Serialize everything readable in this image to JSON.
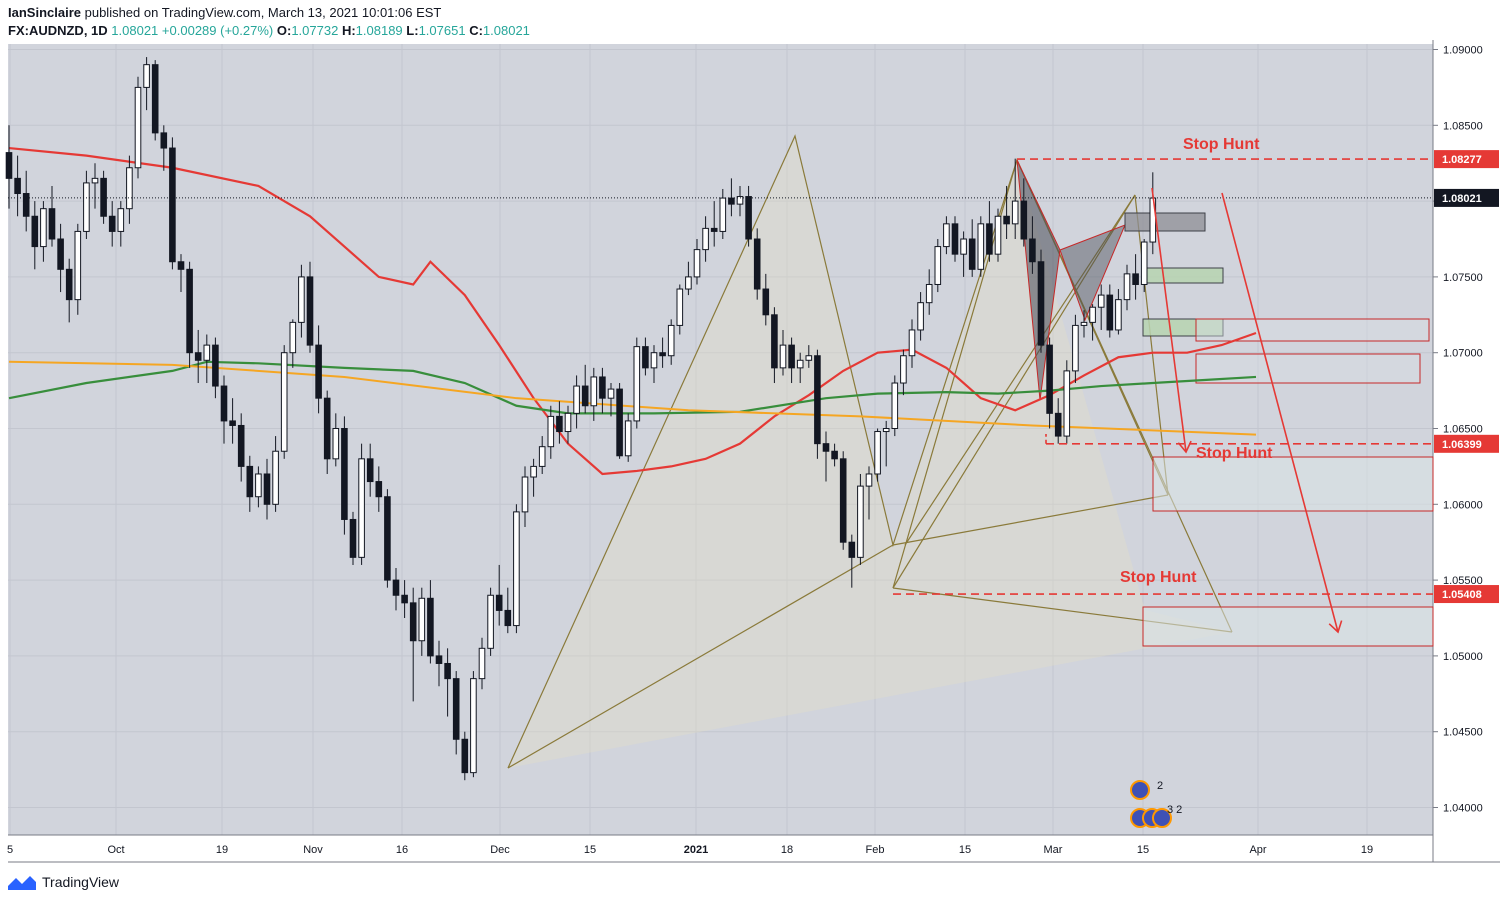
{
  "header": {
    "author": "IanSinclaire",
    "published_text": "published on TradingView.com, March 13, 2021 10:01:06 EST",
    "symbol": "FX:AUDNZD, 1D",
    "last": "1.08021",
    "change": "+0.00289 (+0.27%)",
    "o_label": "O:",
    "o_value": "1.07732",
    "h_label": "H:",
    "h_value": "1.08189",
    "l_label": "L:",
    "l_value": "1.07651",
    "c_label": "C:",
    "c_value": "1.08021"
  },
  "footer": {
    "brand": "TradingView"
  },
  "chart_data": {
    "type": "candlestick",
    "symbol": "FX:AUDNZD",
    "timeframe": "1D",
    "ylim": [
      1.0365,
      1.0915
    ],
    "y_ticks": [
      "1.09000",
      "1.08500",
      "1.08000",
      "1.07500",
      "1.07000",
      "1.06500",
      "1.06000",
      "1.05500",
      "1.05000",
      "1.04500",
      "1.04000"
    ],
    "x_ticks": [
      "5",
      "Oct",
      "19",
      "Nov",
      "16",
      "Dec",
      "15",
      "2021",
      "18",
      "Feb",
      "15",
      "Mar",
      "15",
      "Apr",
      "19"
    ],
    "price_tags": [
      {
        "label": "1.08277",
        "value": 1.08277,
        "color": "#e53935"
      },
      {
        "label": "1.08021",
        "value": 1.08021,
        "color": "#131722"
      },
      {
        "label": "1.06399",
        "value": 1.06399,
        "color": "#e53935"
      },
      {
        "label": "1.05408",
        "value": 1.05408,
        "color": "#e53935"
      }
    ],
    "annotations": [
      "Stop Hunt",
      "Stop Hunt",
      "Stop Hunt"
    ],
    "series": [
      {
        "name": "",
        "color": "#e53935",
        "points": [
          [
            1,
            1.0835
          ],
          [
            10,
            1.083
          ],
          [
            20,
            1.0822
          ],
          [
            30,
            1.081
          ],
          [
            36,
            1.079
          ],
          [
            40,
            1.077
          ],
          [
            44,
            1.075
          ],
          [
            48,
            1.0745
          ],
          [
            50,
            1.076
          ],
          [
            54,
            1.0738
          ],
          [
            58,
            1.0705
          ],
          [
            62,
            1.067
          ],
          [
            66,
            1.064
          ],
          [
            70,
            1.062
          ],
          [
            74,
            1.0622
          ],
          [
            78,
            1.0625
          ],
          [
            82,
            1.063
          ],
          [
            86,
            1.064
          ],
          [
            90,
            1.0658
          ],
          [
            94,
            1.0672
          ],
          [
            98,
            1.0688
          ],
          [
            102,
            1.07
          ],
          [
            106,
            1.0702
          ],
          [
            110,
            1.069
          ],
          [
            114,
            1.067
          ],
          [
            118,
            1.0662
          ],
          [
            122,
            1.0672
          ],
          [
            126,
            1.0685
          ],
          [
            130,
            1.0697
          ],
          [
            134,
            1.07
          ],
          [
            138,
            1.07
          ],
          [
            142,
            1.0705
          ],
          [
            146,
            1.0713
          ]
        ]
      },
      {
        "name": "",
        "color": "#388e3c",
        "points": [
          [
            1,
            1.067
          ],
          [
            10,
            1.068
          ],
          [
            20,
            1.0688
          ],
          [
            24,
            1.0694
          ],
          [
            30,
            1.0693
          ],
          [
            40,
            1.069
          ],
          [
            48,
            1.0688
          ],
          [
            54,
            1.068
          ],
          [
            60,
            1.0665
          ],
          [
            66,
            1.066
          ],
          [
            76,
            1.066
          ],
          [
            86,
            1.0661
          ],
          [
            96,
            1.067
          ],
          [
            102,
            1.0673
          ],
          [
            110,
            1.0674
          ],
          [
            116,
            1.0673
          ],
          [
            122,
            1.0675
          ],
          [
            128,
            1.0678
          ],
          [
            134,
            1.068
          ],
          [
            140,
            1.0682
          ],
          [
            146,
            1.0684
          ]
        ]
      },
      {
        "name": "",
        "color": "#f5a623",
        "points": [
          [
            1,
            1.0694
          ],
          [
            20,
            1.0692
          ],
          [
            40,
            1.0684
          ],
          [
            60,
            1.067
          ],
          [
            80,
            1.0662
          ],
          [
            100,
            1.0658
          ],
          [
            120,
            1.0652
          ],
          [
            146,
            1.0646
          ]
        ]
      }
    ],
    "ohlc": [
      [
        1.0832,
        1.085,
        1.0795,
        1.0815
      ],
      [
        1.0815,
        1.083,
        1.079,
        1.0805
      ],
      [
        1.0805,
        1.082,
        1.078,
        1.079
      ],
      [
        1.079,
        1.08,
        1.0755,
        1.077
      ],
      [
        1.077,
        1.08,
        1.076,
        1.0795
      ],
      [
        1.0795,
        1.081,
        1.077,
        1.0775
      ],
      [
        1.0775,
        1.0785,
        1.074,
        1.0755
      ],
      [
        1.0755,
        1.0762,
        1.072,
        1.0735
      ],
      [
        1.0735,
        1.0785,
        1.0725,
        1.078
      ],
      [
        1.078,
        1.082,
        1.0775,
        1.0812
      ],
      [
        1.0812,
        1.0825,
        1.0795,
        1.0815
      ],
      [
        1.0815,
        1.082,
        1.0785,
        1.079
      ],
      [
        1.079,
        1.08,
        1.077,
        1.078
      ],
      [
        1.078,
        1.08,
        1.077,
        1.0795
      ],
      [
        1.0795,
        1.083,
        1.0785,
        1.0822
      ],
      [
        1.0822,
        1.0882,
        1.0815,
        1.0875
      ],
      [
        1.0875,
        1.0895,
        1.086,
        1.089
      ],
      [
        1.089,
        1.0893,
        1.084,
        1.0845
      ],
      [
        1.0845,
        1.085,
        1.082,
        1.0835
      ],
      [
        1.0835,
        1.0842,
        1.0755,
        1.076
      ],
      [
        1.076,
        1.0765,
        1.074,
        1.0755
      ],
      [
        1.0755,
        1.076,
        1.069,
        1.07
      ],
      [
        1.07,
        1.0715,
        1.068,
        1.0695
      ],
      [
        1.0695,
        1.0712,
        1.068,
        1.0705
      ],
      [
        1.0705,
        1.071,
        1.067,
        1.0678
      ],
      [
        1.0678,
        1.0685,
        1.064,
        1.0655
      ],
      [
        1.0655,
        1.067,
        1.064,
        1.0652
      ],
      [
        1.0652,
        1.066,
        1.0615,
        1.0625
      ],
      [
        1.0625,
        1.0632,
        1.0595,
        1.0605
      ],
      [
        1.0605,
        1.0625,
        1.0598,
        1.062
      ],
      [
        1.062,
        1.063,
        1.059,
        1.06
      ],
      [
        1.06,
        1.0645,
        1.0595,
        1.0635
      ],
      [
        1.0635,
        1.0705,
        1.063,
        1.07
      ],
      [
        1.07,
        1.0722,
        1.069,
        1.072
      ],
      [
        1.072,
        1.0758,
        1.071,
        1.075
      ],
      [
        1.075,
        1.076,
        1.07,
        1.0705
      ],
      [
        1.0705,
        1.0718,
        1.066,
        1.067
      ],
      [
        1.067,
        1.0675,
        1.062,
        1.063
      ],
      [
        1.063,
        1.066,
        1.0625,
        1.065
      ],
      [
        1.065,
        1.0658,
        1.058,
        1.059
      ],
      [
        1.059,
        1.0595,
        1.056,
        1.0565
      ],
      [
        1.0565,
        1.064,
        1.056,
        1.063
      ],
      [
        1.063,
        1.064,
        1.0605,
        1.0615
      ],
      [
        1.0615,
        1.0625,
        1.0595,
        1.0605
      ],
      [
        1.0605,
        1.061,
        1.0545,
        1.055
      ],
      [
        1.055,
        1.0558,
        1.053,
        1.054
      ],
      [
        1.054,
        1.055,
        1.0525,
        1.0535
      ],
      [
        1.0535,
        1.0545,
        1.047,
        1.051
      ],
      [
        1.051,
        1.0545,
        1.05,
        1.0538
      ],
      [
        1.0538,
        1.055,
        1.0495,
        1.05
      ],
      [
        1.05,
        1.051,
        1.048,
        1.0495
      ],
      [
        1.0495,
        1.0505,
        1.046,
        1.0485
      ],
      [
        1.0485,
        1.049,
        1.0435,
        1.0445
      ],
      [
        1.0445,
        1.045,
        1.0418,
        1.0423
      ],
      [
        1.0423,
        1.049,
        1.042,
        1.0485
      ],
      [
        1.0485,
        1.0512,
        1.0478,
        1.0505
      ],
      [
        1.0505,
        1.0545,
        1.05,
        1.054
      ],
      [
        1.054,
        1.056,
        1.052,
        1.053
      ],
      [
        1.053,
        1.0545,
        1.0515,
        1.052
      ],
      [
        1.052,
        1.06,
        1.0515,
        1.0595
      ],
      [
        1.0595,
        1.0625,
        1.0585,
        1.0618
      ],
      [
        1.0618,
        1.063,
        1.0605,
        1.0625
      ],
      [
        1.0625,
        1.0645,
        1.062,
        1.0638
      ],
      [
        1.0638,
        1.0665,
        1.063,
        1.0658
      ],
      [
        1.0658,
        1.0668,
        1.064,
        1.0648
      ],
      [
        1.0648,
        1.0665,
        1.064,
        1.066
      ],
      [
        1.066,
        1.0685,
        1.065,
        1.0678
      ],
      [
        1.0678,
        1.0692,
        1.066,
        1.0665
      ],
      [
        1.0665,
        1.069,
        1.0655,
        1.0684
      ],
      [
        1.0684,
        1.069,
        1.066,
        1.067
      ],
      [
        1.067,
        1.068,
        1.0658,
        1.0676
      ],
      [
        1.0676,
        1.068,
        1.063,
        1.0632
      ],
      [
        1.0632,
        1.066,
        1.0628,
        1.0655
      ],
      [
        1.0655,
        1.071,
        1.065,
        1.0704
      ],
      [
        1.0704,
        1.071,
        1.0685,
        1.069
      ],
      [
        1.069,
        1.0705,
        1.068,
        1.07
      ],
      [
        1.07,
        1.071,
        1.069,
        1.0698
      ],
      [
        1.0698,
        1.0722,
        1.0692,
        1.0718
      ],
      [
        1.0718,
        1.0745,
        1.0712,
        1.0742
      ],
      [
        1.0742,
        1.076,
        1.0738,
        1.075
      ],
      [
        1.075,
        1.0775,
        1.0745,
        1.0768
      ],
      [
        1.0768,
        1.079,
        1.076,
        1.0782
      ],
      [
        1.0782,
        1.08,
        1.077,
        1.078
      ],
      [
        1.078,
        1.0808,
        1.0775,
        1.0802
      ],
      [
        1.0802,
        1.0815,
        1.079,
        1.0798
      ],
      [
        1.0798,
        1.081,
        1.079,
        1.0803
      ],
      [
        1.0803,
        1.081,
        1.077,
        1.0775
      ],
      [
        1.0775,
        1.0782,
        1.0735,
        1.0742
      ],
      [
        1.0742,
        1.0752,
        1.0718,
        1.0725
      ],
      [
        1.0725,
        1.073,
        1.068,
        1.069
      ],
      [
        1.069,
        1.0715,
        1.0685,
        1.0705
      ],
      [
        1.0705,
        1.071,
        1.068,
        1.069
      ],
      [
        1.069,
        1.07,
        1.068,
        1.0695
      ],
      [
        1.0695,
        1.0705,
        1.069,
        1.0698
      ],
      [
        1.0698,
        1.0702,
        1.063,
        1.064
      ],
      [
        1.064,
        1.0648,
        1.0615,
        1.0635
      ],
      [
        1.0635,
        1.064,
        1.0625,
        1.063
      ],
      [
        1.063,
        1.0635,
        1.057,
        1.0575
      ],
      [
        1.0575,
        1.058,
        1.0545,
        1.0565
      ],
      [
        1.0565,
        1.062,
        1.056,
        1.0612
      ],
      [
        1.0612,
        1.0625,
        1.059,
        1.062
      ],
      [
        1.062,
        1.065,
        1.0615,
        1.0648
      ],
      [
        1.0648,
        1.0655,
        1.0625,
        1.065
      ],
      [
        1.065,
        1.0685,
        1.0645,
        1.068
      ],
      [
        1.068,
        1.0702,
        1.0672,
        1.0698
      ],
      [
        1.0698,
        1.0722,
        1.069,
        1.0715
      ],
      [
        1.0715,
        1.074,
        1.0708,
        1.0733
      ],
      [
        1.0733,
        1.0755,
        1.0725,
        1.0745
      ],
      [
        1.0745,
        1.0775,
        1.074,
        1.077
      ],
      [
        1.077,
        1.079,
        1.0765,
        1.0785
      ],
      [
        1.0785,
        1.079,
        1.076,
        1.0765
      ],
      [
        1.0765,
        1.078,
        1.075,
        1.0775
      ],
      [
        1.0775,
        1.0788,
        1.075,
        1.0755
      ],
      [
        1.0755,
        1.079,
        1.075,
        1.0785
      ],
      [
        1.0785,
        1.08,
        1.076,
        1.0765
      ],
      [
        1.0765,
        1.0795,
        1.076,
        1.079
      ],
      [
        1.079,
        1.081,
        1.0775,
        1.0785
      ],
      [
        1.0785,
        1.0828,
        1.0775,
        1.08
      ],
      [
        1.08,
        1.0815,
        1.077,
        1.0775
      ],
      [
        1.0775,
        1.079,
        1.0752,
        1.076
      ],
      [
        1.076,
        1.0768,
        1.07,
        1.0705
      ],
      [
        1.0705,
        1.071,
        1.065,
        1.066
      ],
      [
        1.066,
        1.067,
        1.064,
        1.0645
      ],
      [
        1.0645,
        1.0695,
        1.064,
        1.0688
      ],
      [
        1.0688,
        1.0725,
        1.068,
        1.0718
      ],
      [
        1.0718,
        1.0728,
        1.071,
        1.072
      ],
      [
        1.072,
        1.0732,
        1.0708,
        1.073
      ],
      [
        1.073,
        1.0745,
        1.0715,
        1.0738
      ],
      [
        1.0738,
        1.0745,
        1.071,
        1.0715
      ],
      [
        1.0715,
        1.0742,
        1.0712,
        1.0735
      ],
      [
        1.0735,
        1.0758,
        1.0728,
        1.0752
      ],
      [
        1.0752,
        1.0765,
        1.0735,
        1.0745
      ],
      [
        1.0745,
        1.0775,
        1.074,
        1.0773
      ],
      [
        1.0773,
        1.0819,
        1.0765,
        1.0802
      ]
    ]
  }
}
